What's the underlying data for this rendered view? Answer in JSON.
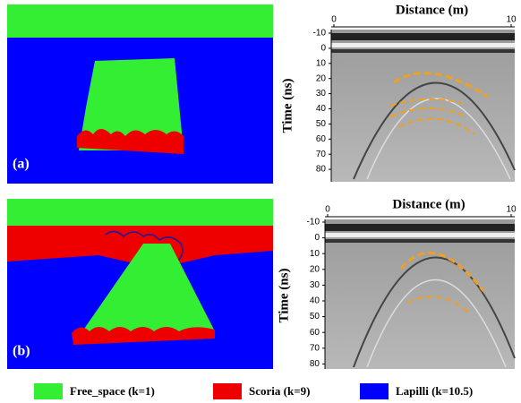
{
  "panels": [
    {
      "label": "(a)",
      "x_axis_title": "Distance (m)",
      "y_axis_title": "Time (ns)",
      "x_ticks": [
        0,
        10
      ],
      "y_ticks": [
        -10,
        0,
        10,
        20,
        30,
        40,
        50,
        60,
        70,
        80
      ]
    },
    {
      "label": "(b)",
      "x_axis_title": "Distance (m)",
      "y_axis_title": "Time (ns)",
      "x_ticks": [
        0,
        10
      ],
      "y_ticks": [
        -10,
        0,
        10,
        20,
        30,
        40,
        50,
        60,
        70,
        80
      ]
    }
  ],
  "legend": [
    "Free_space (k=1)",
    "Scoria (k=9)",
    "Lapilli (k=10.5)"
  ]
}
